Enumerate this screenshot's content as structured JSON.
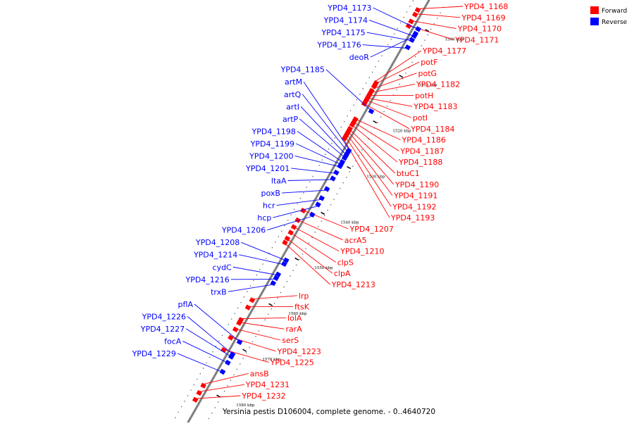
{
  "colors": {
    "forward": "#ff0000",
    "reverse": "#0000ff",
    "axis": "#7f7f7f"
  },
  "legend": [
    {
      "label": "Forward",
      "color": "#ff0000"
    },
    {
      "label": "Reverse",
      "color": "#0000ff"
    }
  ],
  "caption": "Yersinia pestis D106004, complete genome. - 0..4640720",
  "kbp_ticks": [
    {
      "label": "1500 kbp",
      "kbp": 1500
    },
    {
      "label": "1510 kbp",
      "kbp": 1510
    },
    {
      "label": "1520 kbp",
      "kbp": 1520
    },
    {
      "label": "1530 kbp",
      "kbp": 1530
    },
    {
      "label": "1540 kbp",
      "kbp": 1540
    },
    {
      "label": "1550 kbp",
      "kbp": 1550
    },
    {
      "label": "1560 kbp",
      "kbp": 1560
    },
    {
      "label": "1570 kbp",
      "kbp": 1570
    },
    {
      "label": "1580 kbp",
      "kbp": 1580
    }
  ],
  "forward_genes": [
    {
      "name": "YPD4_1168",
      "kbp": 1497.5
    },
    {
      "name": "YPD4_1169",
      "kbp": 1498.5
    },
    {
      "name": "YPD4_1170",
      "kbp": 1500.0
    },
    {
      "name": "YPD4_1171",
      "kbp": 1501.0
    },
    {
      "name": "YPD4_1177",
      "kbp": 1513.5
    },
    {
      "name": "potF",
      "kbp": 1514.2
    },
    {
      "name": "potG",
      "kbp": 1515.2
    },
    {
      "name": "YPD4_1182",
      "kbp": 1515.9
    },
    {
      "name": "potH",
      "kbp": 1516.4
    },
    {
      "name": "YPD4_1183",
      "kbp": 1516.9
    },
    {
      "name": "potI",
      "kbp": 1517.3
    },
    {
      "name": "YPD4_1184",
      "kbp": 1518.0
    },
    {
      "name": "YPD4_1186",
      "kbp": 1521.4
    },
    {
      "name": "YPD4_1187",
      "kbp": 1522.0
    },
    {
      "name": "YPD4_1188",
      "kbp": 1522.6
    },
    {
      "name": "btuC1",
      "kbp": 1523.5
    },
    {
      "name": "YPD4_1190",
      "kbp": 1524.0
    },
    {
      "name": "YPD4_1191",
      "kbp": 1524.5
    },
    {
      "name": "YPD4_1192",
      "kbp": 1525.0
    },
    {
      "name": "YPD4_1193",
      "kbp": 1525.6
    },
    {
      "name": "YPD4_1207",
      "kbp": 1541.4
    },
    {
      "name": "acrA5",
      "kbp": 1543.5
    },
    {
      "name": "YPD4_1210",
      "kbp": 1545.0
    },
    {
      "name": "clpS",
      "kbp": 1546.2
    },
    {
      "name": "clpA",
      "kbp": 1547.5
    },
    {
      "name": "YPD4_1213",
      "kbp": 1548.4
    },
    {
      "name": "lrp",
      "kbp": 1561.0
    },
    {
      "name": "ftsK",
      "kbp": 1562.6
    },
    {
      "name": "lolA",
      "kbp": 1565.3
    },
    {
      "name": "rarA",
      "kbp": 1566.0
    },
    {
      "name": "serS",
      "kbp": 1567.4
    },
    {
      "name": "YPD4_1223",
      "kbp": 1569.2
    },
    {
      "name": "YPD4_1225",
      "kbp": 1571.9
    },
    {
      "name": "ansB",
      "kbp": 1579.7
    },
    {
      "name": "YPD4_1231",
      "kbp": 1581.3
    },
    {
      "name": "YPD4_1232",
      "kbp": 1582.8
    }
  ],
  "reverse_genes": [
    {
      "name": "YPD4_1173",
      "kbp": 1500.6
    },
    {
      "name": "YPD4_1174",
      "kbp": 1502.1
    },
    {
      "name": "YPD4_1175",
      "kbp": 1503.0
    },
    {
      "name": "YPD4_1176",
      "kbp": 1504.6
    },
    {
      "name": "deoR",
      "kbp": 1501.6
    },
    {
      "name": "YPD4_1185",
      "kbp": 1518.6
    },
    {
      "name": "artM",
      "kbp": 1527.2
    },
    {
      "name": "artQ",
      "kbp": 1527.7
    },
    {
      "name": "artI",
      "kbp": 1528.3
    },
    {
      "name": "artP",
      "kbp": 1528.8
    },
    {
      "name": "YPD4_1198",
      "kbp": 1529.7
    },
    {
      "name": "YPD4_1199",
      "kbp": 1530.2
    },
    {
      "name": "YPD4_1200",
      "kbp": 1530.6
    },
    {
      "name": "YPD4_1201",
      "kbp": 1532.0
    },
    {
      "name": "ltaA",
      "kbp": 1533.3
    },
    {
      "name": "poxB",
      "kbp": 1535.6
    },
    {
      "name": "hcr",
      "kbp": 1537.6
    },
    {
      "name": "hcp",
      "kbp": 1539.0
    },
    {
      "name": "YPD4_1206",
      "kbp": 1541.2
    },
    {
      "name": "YPD4_1208",
      "kbp": 1551.2
    },
    {
      "name": "YPD4_1214",
      "kbp": 1552.0
    },
    {
      "name": "cydC",
      "kbp": 1554.3
    },
    {
      "name": "YPD4_1216",
      "kbp": 1555.1
    },
    {
      "name": "trxB",
      "kbp": 1556.2
    },
    {
      "name": "pflA",
      "kbp": 1569.1
    },
    {
      "name": "YPD4_1226",
      "kbp": 1571.8
    },
    {
      "name": "YPD4_1227",
      "kbp": 1572.3
    },
    {
      "name": "focA",
      "kbp": 1573.6
    },
    {
      "name": "YPD4_1229",
      "kbp": 1575.6
    }
  ]
}
